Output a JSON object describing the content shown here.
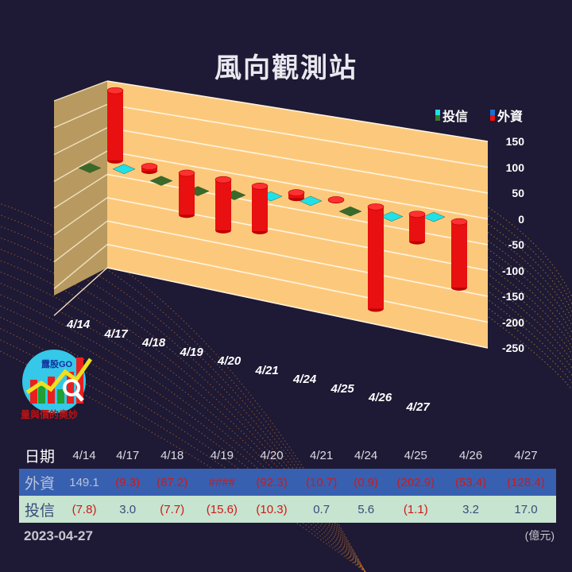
{
  "title": "風向觀測站",
  "legend": [
    {
      "label": "投信",
      "colors": [
        "#20e0e8",
        "#3a7a2a"
      ]
    },
    {
      "label": "外資",
      "colors": [
        "#1a70d0",
        "#e81010"
      ]
    }
  ],
  "chart_data": {
    "type": "bar",
    "style": "3d-cylinder",
    "categories": [
      "4/14",
      "4/17",
      "4/18",
      "4/19",
      "4/20",
      "4/21",
      "4/24",
      "4/25",
      "4/26",
      "4/27"
    ],
    "series": [
      {
        "name": "外資",
        "values": [
          149.1,
          -9.3,
          -87.2,
          -105,
          -92.3,
          -10.7,
          -0.9,
          -202.9,
          -53.4,
          -128.4
        ],
        "color": "#e81010"
      },
      {
        "name": "投信",
        "values": [
          -7.8,
          3.0,
          -7.7,
          -15.6,
          -10.3,
          0.7,
          5.6,
          -1.1,
          3.2,
          17.0
        ],
        "color_positive": "#20e0e8",
        "color_negative": "#3a6a2a"
      }
    ],
    "yticks": [
      "150",
      "100",
      "50",
      "0",
      "-50",
      "-100",
      "-150",
      "-200",
      "-250"
    ],
    "ylim": [
      -250,
      150
    ],
    "grid": true,
    "legend": "top-right"
  },
  "table": {
    "date_label": "日期",
    "dates": [
      "4/14",
      "4/17",
      "4/18",
      "4/19",
      "4/20",
      "4/21",
      "4/24",
      "4/25",
      "4/26",
      "4/27"
    ],
    "rows": [
      {
        "label": "外資",
        "values": [
          "149.1",
          "(9.3)",
          "(87.2)",
          "####",
          "(92.3)",
          "(10.7)",
          "(0.9)",
          "(202.9)",
          "(53.4)",
          "(128.4)"
        ]
      },
      {
        "label": "投信",
        "values": [
          "(7.8)",
          "3.0",
          "(7.7)",
          "(15.6)",
          "(10.3)",
          "0.7",
          "5.6",
          "(1.1)",
          "3.2",
          "17.0"
        ]
      }
    ]
  },
  "logo": {
    "text": "露股GO",
    "subtitle": "量與價的奧妙"
  },
  "footer": {
    "date": "2023-04-27",
    "unit": "(億元)"
  }
}
